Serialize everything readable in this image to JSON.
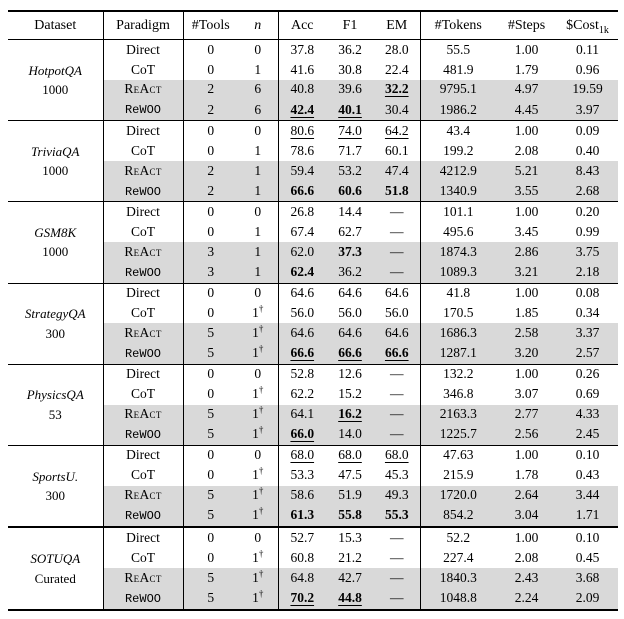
{
  "table": {
    "headers": [
      "Dataset",
      "Paradigm",
      "#Tools",
      "n",
      "Acc",
      "F1",
      "EM",
      "#Tokens",
      "#Steps"
    ],
    "cost_header": {
      "base": "$Cost",
      "sub": "1k"
    },
    "shaded_row_color": "#d9d9d9",
    "dash": "—",
    "sections": [
      {
        "name": "HotpotQA",
        "sub": "1000",
        "thick_top": false,
        "rows": [
          {
            "paradigm": "Direct",
            "pstyle": "roman",
            "tools": "0",
            "n": "0",
            "n_sup": "",
            "vals": [
              "37.8",
              "36.2",
              "28.0"
            ],
            "emph": [
              "",
              "",
              ""
            ],
            "tokens": "55.5",
            "steps": "1.00",
            "cost": "0.11",
            "shaded": false
          },
          {
            "paradigm": "CoT",
            "pstyle": "roman",
            "tools": "0",
            "n": "1",
            "n_sup": "",
            "vals": [
              "41.6",
              "30.8",
              "22.4"
            ],
            "emph": [
              "",
              "",
              ""
            ],
            "tokens": "481.9",
            "steps": "1.79",
            "cost": "0.96",
            "shaded": false
          },
          {
            "paradigm": "ReAct",
            "pstyle": "smallcaps",
            "tools": "2",
            "n": "6",
            "n_sup": "",
            "vals": [
              "40.8",
              "39.6",
              "32.2"
            ],
            "emph": [
              "",
              "",
              "bu"
            ],
            "tokens": "9795.1",
            "steps": "4.97",
            "cost": "19.59",
            "shaded": true
          },
          {
            "paradigm": "ReWOO",
            "pstyle": "mono",
            "tools": "2",
            "n": "6",
            "n_sup": "",
            "vals": [
              "42.4",
              "40.1",
              "30.4"
            ],
            "emph": [
              "bu",
              "bu",
              ""
            ],
            "tokens": "1986.2",
            "steps": "4.45",
            "cost": "3.97",
            "shaded": true
          }
        ]
      },
      {
        "name": "TriviaQA",
        "sub": "1000",
        "thick_top": false,
        "rows": [
          {
            "paradigm": "Direct",
            "pstyle": "roman",
            "tools": "0",
            "n": "0",
            "n_sup": "",
            "vals": [
              "80.6",
              "74.0",
              "64.2"
            ],
            "emph": [
              "u",
              "u",
              "u"
            ],
            "tokens": "43.4",
            "steps": "1.00",
            "cost": "0.09",
            "shaded": false
          },
          {
            "paradigm": "CoT",
            "pstyle": "roman",
            "tools": "0",
            "n": "1",
            "n_sup": "",
            "vals": [
              "78.6",
              "71.7",
              "60.1"
            ],
            "emph": [
              "",
              "",
              ""
            ],
            "tokens": "199.2",
            "steps": "2.08",
            "cost": "0.40",
            "shaded": false
          },
          {
            "paradigm": "ReAct",
            "pstyle": "smallcaps",
            "tools": "2",
            "n": "1",
            "n_sup": "",
            "vals": [
              "59.4",
              "53.2",
              "47.4"
            ],
            "emph": [
              "",
              "",
              ""
            ],
            "tokens": "4212.9",
            "steps": "5.21",
            "cost": "8.43",
            "shaded": true
          },
          {
            "paradigm": "ReWOO",
            "pstyle": "mono",
            "tools": "2",
            "n": "1",
            "n_sup": "",
            "vals": [
              "66.6",
              "60.6",
              "51.8"
            ],
            "emph": [
              "b",
              "b",
              "b"
            ],
            "tokens": "1340.9",
            "steps": "3.55",
            "cost": "2.68",
            "shaded": true
          }
        ]
      },
      {
        "name": "GSM8K",
        "sub": "1000",
        "thick_top": false,
        "rows": [
          {
            "paradigm": "Direct",
            "pstyle": "roman",
            "tools": "0",
            "n": "0",
            "n_sup": "",
            "vals": [
              "26.8",
              "14.4",
              "—"
            ],
            "emph": [
              "",
              "",
              ""
            ],
            "tokens": "101.1",
            "steps": "1.00",
            "cost": "0.20",
            "shaded": false
          },
          {
            "paradigm": "CoT",
            "pstyle": "roman",
            "tools": "0",
            "n": "1",
            "n_sup": "",
            "vals": [
              "67.4",
              "62.7",
              "—"
            ],
            "emph": [
              "",
              "",
              ""
            ],
            "tokens": "495.6",
            "steps": "3.45",
            "cost": "0.99",
            "shaded": false
          },
          {
            "paradigm": "ReAct",
            "pstyle": "smallcaps",
            "tools": "3",
            "n": "1",
            "n_sup": "",
            "vals": [
              "62.0",
              "37.3",
              "—"
            ],
            "emph": [
              "",
              "b",
              ""
            ],
            "tokens": "1874.3",
            "steps": "2.86",
            "cost": "3.75",
            "shaded": true
          },
          {
            "paradigm": "ReWOO",
            "pstyle": "mono",
            "tools": "3",
            "n": "1",
            "n_sup": "",
            "vals": [
              "62.4",
              "36.2",
              "—"
            ],
            "emph": [
              "b",
              "",
              ""
            ],
            "tokens": "1089.3",
            "steps": "3.21",
            "cost": "2.18",
            "shaded": true
          }
        ]
      },
      {
        "name": "StrategyQA",
        "sub": "300",
        "thick_top": false,
        "rows": [
          {
            "paradigm": "Direct",
            "pstyle": "roman",
            "tools": "0",
            "n": "0",
            "n_sup": "",
            "vals": [
              "64.6",
              "64.6",
              "64.6"
            ],
            "emph": [
              "",
              "",
              ""
            ],
            "tokens": "41.8",
            "steps": "1.00",
            "cost": "0.08",
            "shaded": false
          },
          {
            "paradigm": "CoT",
            "pstyle": "roman",
            "tools": "0",
            "n": "1",
            "n_sup": "†",
            "vals": [
              "56.0",
              "56.0",
              "56.0"
            ],
            "emph": [
              "",
              "",
              ""
            ],
            "tokens": "170.5",
            "steps": "1.85",
            "cost": "0.34",
            "shaded": false
          },
          {
            "paradigm": "ReAct",
            "pstyle": "smallcaps",
            "tools": "5",
            "n": "1",
            "n_sup": "†",
            "vals": [
              "64.6",
              "64.6",
              "64.6"
            ],
            "emph": [
              "",
              "",
              ""
            ],
            "tokens": "1686.3",
            "steps": "2.58",
            "cost": "3.37",
            "shaded": true
          },
          {
            "paradigm": "ReWOO",
            "pstyle": "mono",
            "tools": "5",
            "n": "1",
            "n_sup": "†",
            "vals": [
              "66.6",
              "66.6",
              "66.6"
            ],
            "emph": [
              "bu",
              "bu",
              "bu"
            ],
            "tokens": "1287.1",
            "steps": "3.20",
            "cost": "2.57",
            "shaded": true
          }
        ]
      },
      {
        "name": "PhysicsQA",
        "sub": "53",
        "thick_top": false,
        "rows": [
          {
            "paradigm": "Direct",
            "pstyle": "roman",
            "tools": "0",
            "n": "0",
            "n_sup": "",
            "vals": [
              "52.8",
              "12.6",
              "—"
            ],
            "emph": [
              "",
              "",
              ""
            ],
            "tokens": "132.2",
            "steps": "1.00",
            "cost": "0.26",
            "shaded": false
          },
          {
            "paradigm": "CoT",
            "pstyle": "roman",
            "tools": "0",
            "n": "1",
            "n_sup": "†",
            "vals": [
              "62.2",
              "15.2",
              "—"
            ],
            "emph": [
              "",
              "",
              ""
            ],
            "tokens": "346.8",
            "steps": "3.07",
            "cost": "0.69",
            "shaded": false
          },
          {
            "paradigm": "ReAct",
            "pstyle": "smallcaps",
            "tools": "5",
            "n": "1",
            "n_sup": "†",
            "vals": [
              "64.1",
              "16.2",
              "—"
            ],
            "emph": [
              "",
              "bu",
              ""
            ],
            "tokens": "2163.3",
            "steps": "2.77",
            "cost": "4.33",
            "shaded": true
          },
          {
            "paradigm": "ReWOO",
            "pstyle": "mono",
            "tools": "5",
            "n": "1",
            "n_sup": "†",
            "vals": [
              "66.0",
              "14.0",
              "—"
            ],
            "emph": [
              "bu",
              "",
              ""
            ],
            "tokens": "1225.7",
            "steps": "2.56",
            "cost": "2.45",
            "shaded": true
          }
        ]
      },
      {
        "name": "SportsU.",
        "sub": "300",
        "thick_top": false,
        "rows": [
          {
            "paradigm": "Direct",
            "pstyle": "roman",
            "tools": "0",
            "n": "0",
            "n_sup": "",
            "vals": [
              "68.0",
              "68.0",
              "68.0"
            ],
            "emph": [
              "u",
              "u",
              "u"
            ],
            "tokens": "47.63",
            "steps": "1.00",
            "cost": "0.10",
            "shaded": false
          },
          {
            "paradigm": "CoT",
            "pstyle": "roman",
            "tools": "0",
            "n": "1",
            "n_sup": "†",
            "vals": [
              "53.3",
              "47.5",
              "45.3"
            ],
            "emph": [
              "",
              "",
              ""
            ],
            "tokens": "215.9",
            "steps": "1.78",
            "cost": "0.43",
            "shaded": false
          },
          {
            "paradigm": "ReAct",
            "pstyle": "smallcaps",
            "tools": "5",
            "n": "1",
            "n_sup": "†",
            "vals": [
              "58.6",
              "51.9",
              "49.3"
            ],
            "emph": [
              "",
              "",
              ""
            ],
            "tokens": "1720.0",
            "steps": "2.64",
            "cost": "3.44",
            "shaded": true
          },
          {
            "paradigm": "ReWOO",
            "pstyle": "mono",
            "tools": "5",
            "n": "1",
            "n_sup": "†",
            "vals": [
              "61.3",
              "55.8",
              "55.3"
            ],
            "emph": [
              "b",
              "b",
              "b"
            ],
            "tokens": "854.2",
            "steps": "3.04",
            "cost": "1.71",
            "shaded": true
          }
        ]
      },
      {
        "name": "SOTUQA",
        "sub": "Curated",
        "thick_top": true,
        "rows": [
          {
            "paradigm": "Direct",
            "pstyle": "roman",
            "tools": "0",
            "n": "0",
            "n_sup": "",
            "vals": [
              "52.7",
              "15.3",
              "—"
            ],
            "emph": [
              "",
              "",
              ""
            ],
            "tokens": "52.2",
            "steps": "1.00",
            "cost": "0.10",
            "shaded": false
          },
          {
            "paradigm": "CoT",
            "pstyle": "roman",
            "tools": "0",
            "n": "1",
            "n_sup": "†",
            "vals": [
              "60.8",
              "21.2",
              "—"
            ],
            "emph": [
              "",
              "",
              ""
            ],
            "tokens": "227.4",
            "steps": "2.08",
            "cost": "0.45",
            "shaded": false
          },
          {
            "paradigm": "ReAct",
            "pstyle": "smallcaps",
            "tools": "5",
            "n": "1",
            "n_sup": "†",
            "vals": [
              "64.8",
              "42.7",
              "—"
            ],
            "emph": [
              "",
              "",
              ""
            ],
            "tokens": "1840.3",
            "steps": "2.43",
            "cost": "3.68",
            "shaded": true
          },
          {
            "paradigm": "ReWOO",
            "pstyle": "mono",
            "tools": "5",
            "n": "1",
            "n_sup": "†",
            "vals": [
              "70.2",
              "44.8",
              "—"
            ],
            "emph": [
              "bu",
              "bu",
              ""
            ],
            "tokens": "1048.8",
            "steps": "2.24",
            "cost": "2.09",
            "shaded": true
          }
        ]
      }
    ]
  }
}
